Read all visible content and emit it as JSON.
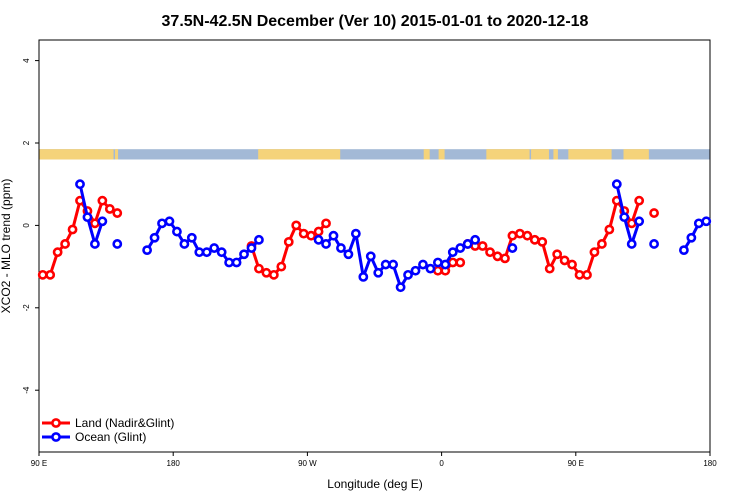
{
  "chart_data": {
    "type": "line",
    "title": "37.5N-42.5N December (Ver 10)   2015-01-01 to 2020-12-18",
    "xlabel": "Longitude (deg E)",
    "ylabel": "XCO2 - MLO trend (ppm)",
    "xlim": [
      90,
      540
    ],
    "ylim": [
      -5.5,
      4.5
    ],
    "x_ticks": [
      {
        "value": 90,
        "label": "90 E"
      },
      {
        "value": 180,
        "label": "180"
      },
      {
        "value": 270,
        "label": "90 W"
      },
      {
        "value": 360,
        "label": "0"
      },
      {
        "value": 450,
        "label": "90 E"
      },
      {
        "value": 540,
        "label": "180"
      }
    ],
    "y_ticks": [
      {
        "value": -4,
        "label": "-4"
      },
      {
        "value": -2,
        "label": "-2"
      },
      {
        "value": 0,
        "label": "0"
      },
      {
        "value": 2,
        "label": "2"
      },
      {
        "value": 4,
        "label": "4"
      }
    ],
    "land_sea_strip": {
      "y_range": [
        1.6,
        1.85
      ],
      "land_color": "#f5d37a",
      "ocean_color": "#a3b9d6",
      "land_segments": [
        [
          90,
          140
        ],
        [
          141,
          143
        ],
        [
          237,
          292
        ],
        [
          348,
          352
        ],
        [
          358,
          362
        ],
        [
          390,
          419
        ],
        [
          420,
          432
        ],
        [
          435,
          438
        ],
        [
          445,
          474
        ],
        [
          482,
          499
        ]
      ]
    },
    "legend_position": "bottom-left",
    "series": [
      {
        "name": "Land (Nadir&Glint)",
        "color": "#ff0000",
        "segments": [
          [
            [
              92.5,
              -1.2
            ],
            [
              97.5,
              -1.2
            ],
            [
              102.5,
              -0.65
            ],
            [
              107.5,
              -0.45
            ],
            [
              112.5,
              -0.1
            ],
            [
              117.5,
              0.6
            ],
            [
              122.5,
              0.35
            ],
            [
              127.5,
              0.05
            ],
            [
              132.5,
              0.6
            ],
            [
              137.5,
              0.4
            ],
            [
              142.5,
              0.3
            ]
          ],
          [
            [
              232.5,
              -0.5
            ],
            [
              237.5,
              -1.05
            ],
            [
              242.5,
              -1.15
            ],
            [
              247.5,
              -1.2
            ],
            [
              252.5,
              -1.0
            ],
            [
              257.5,
              -0.4
            ],
            [
              262.5,
              0.0
            ],
            [
              267.5,
              -0.2
            ],
            [
              272.5,
              -0.25
            ],
            [
              277.5,
              -0.15
            ],
            [
              282.5,
              0.05
            ]
          ],
          [
            [
              357.5,
              -1.1
            ],
            [
              362.5,
              -1.1
            ],
            [
              367.5,
              -0.9
            ],
            [
              372.5,
              -0.9
            ]
          ],
          [
            [
              377.5,
              -0.45
            ],
            [
              382.5,
              -0.5
            ],
            [
              387.5,
              -0.5
            ],
            [
              392.5,
              -0.65
            ],
            [
              397.5,
              -0.75
            ],
            [
              402.5,
              -0.8
            ],
            [
              407.5,
              -0.25
            ],
            [
              412.5,
              -0.2
            ],
            [
              417.5,
              -0.25
            ],
            [
              422.5,
              -0.35
            ],
            [
              427.5,
              -0.4
            ],
            [
              432.5,
              -1.05
            ],
            [
              437.5,
              -0.7
            ],
            [
              442.5,
              -0.85
            ],
            [
              447.5,
              -0.95
            ],
            [
              452.5,
              -1.2
            ],
            [
              457.5,
              -1.2
            ],
            [
              462.5,
              -0.65
            ],
            [
              467.5,
              -0.45
            ],
            [
              472.5,
              -0.1
            ],
            [
              477.5,
              0.6
            ],
            [
              482.5,
              0.35
            ],
            [
              487.5,
              0.05
            ],
            [
              492.5,
              0.6
            ]
          ],
          [
            [
              502.5,
              0.3
            ]
          ]
        ]
      },
      {
        "name": "Ocean (Glint)",
        "color": "#0000ff",
        "segments": [
          [
            [
              117.5,
              1.0
            ],
            [
              122.5,
              0.2
            ],
            [
              127.5,
              -0.45
            ],
            [
              132.5,
              0.1
            ]
          ],
          [
            [
              142.5,
              -0.45
            ]
          ],
          [
            [
              162.5,
              -0.6
            ],
            [
              167.5,
              -0.3
            ],
            [
              172.5,
              0.05
            ],
            [
              177.5,
              0.1
            ],
            [
              182.5,
              -0.15
            ],
            [
              187.5,
              -0.45
            ],
            [
              192.5,
              -0.3
            ],
            [
              197.5,
              -0.65
            ],
            [
              202.5,
              -0.65
            ],
            [
              207.5,
              -0.55
            ],
            [
              212.5,
              -0.65
            ],
            [
              217.5,
              -0.9
            ],
            [
              222.5,
              -0.9
            ],
            [
              227.5,
              -0.7
            ],
            [
              232.5,
              -0.55
            ],
            [
              237.5,
              -0.35
            ]
          ],
          [
            [
              277.5,
              -0.35
            ],
            [
              282.5,
              -0.45
            ],
            [
              287.5,
              -0.25
            ],
            [
              292.5,
              -0.55
            ],
            [
              297.5,
              -0.7
            ],
            [
              302.5,
              -0.2
            ],
            [
              307.5,
              -1.25
            ],
            [
              312.5,
              -0.75
            ],
            [
              317.5,
              -1.15
            ],
            [
              322.5,
              -0.95
            ],
            [
              327.5,
              -0.95
            ],
            [
              332.5,
              -1.5
            ],
            [
              337.5,
              -1.2
            ],
            [
              342.5,
              -1.1
            ],
            [
              347.5,
              -0.95
            ],
            [
              352.5,
              -1.05
            ]
          ],
          [
            [
              357.5,
              -0.9
            ],
            [
              362.5,
              -0.95
            ],
            [
              367.5,
              -0.65
            ],
            [
              372.5,
              -0.55
            ],
            [
              377.5,
              -0.45
            ],
            [
              382.5,
              -0.35
            ]
          ],
          [
            [
              407.5,
              -0.55
            ]
          ],
          [
            [
              477.5,
              1.0
            ],
            [
              482.5,
              0.2
            ],
            [
              487.5,
              -0.45
            ],
            [
              492.5,
              0.1
            ]
          ],
          [
            [
              502.5,
              -0.45
            ]
          ],
          [
            [
              522.5,
              -0.6
            ],
            [
              527.5,
              -0.3
            ],
            [
              532.5,
              0.05
            ],
            [
              537.5,
              0.1
            ]
          ]
        ]
      }
    ]
  }
}
